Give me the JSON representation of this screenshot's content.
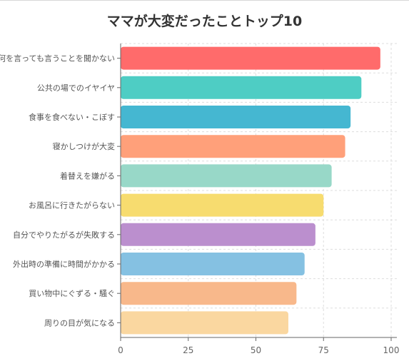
{
  "chart_data": {
    "type": "bar",
    "orientation": "horizontal",
    "title": "ママが大変だったことトップ10",
    "xlabel": "",
    "ylabel": "",
    "xlim": [
      0,
      100
    ],
    "x_ticks": [
      0,
      25,
      50,
      75,
      100
    ],
    "grid": true,
    "categories": [
      "何を言っても言うことを聞かない",
      "公共の場でのイヤイヤ",
      "食事を食べない・こぼす",
      "寝かしつけが大変",
      "着替えを嫌がる",
      "お風呂に行きたがらない",
      "自分でやりたがるが失敗する",
      "外出時の準備に時間がかかる",
      "買い物中にぐずる・騒ぐ",
      "周りの目が気になる"
    ],
    "values": [
      96,
      89,
      85,
      83,
      78,
      75,
      72,
      68,
      65,
      62
    ],
    "colors": [
      "#ff6b6b",
      "#4ecdc4",
      "#45b7d1",
      "#ffa07a",
      "#98d8c8",
      "#f7dc6f",
      "#bb8fce",
      "#85c1e2",
      "#f8b88b",
      "#fad7a0"
    ]
  }
}
